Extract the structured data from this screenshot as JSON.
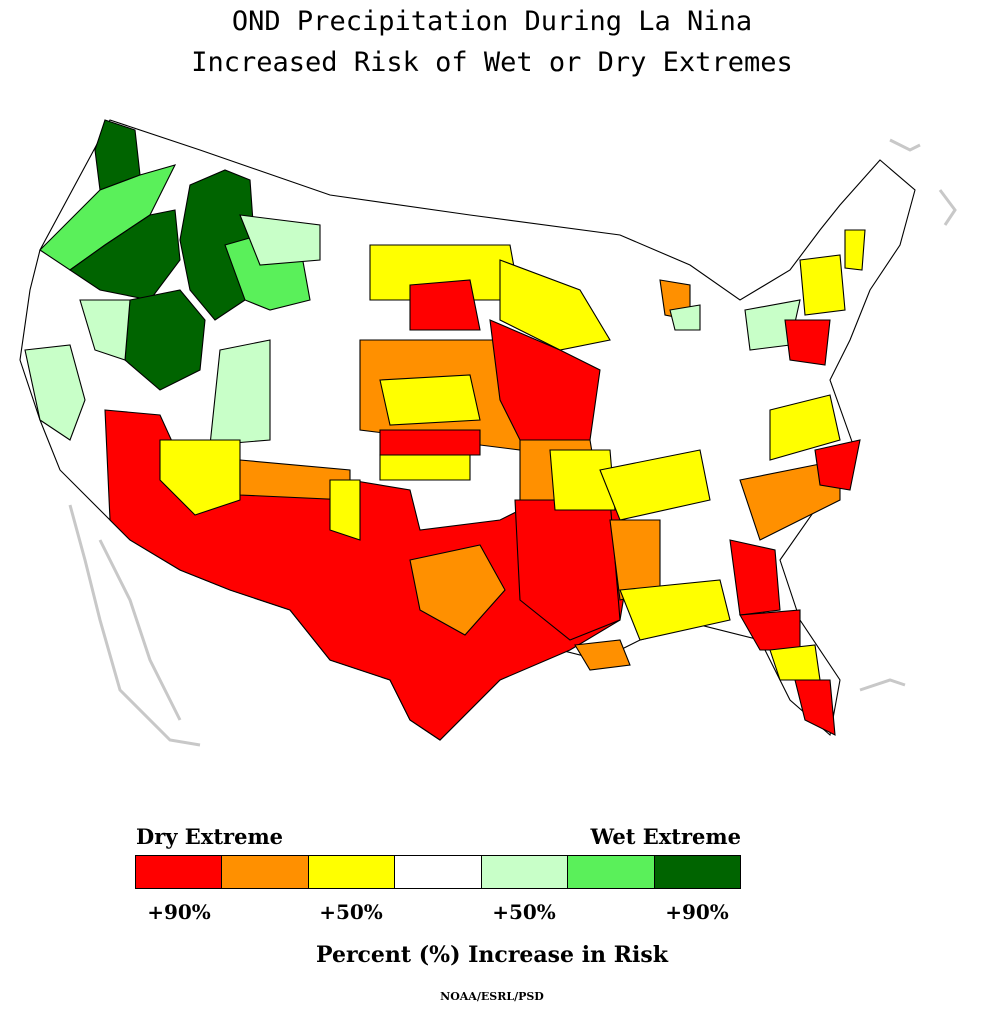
{
  "title": {
    "line1": "OND Precipitation During La Nina",
    "line2": "Increased Risk of Wet or Dry Extremes"
  },
  "legend": {
    "dry_label": "Dry Extreme",
    "wet_label": "Wet Extreme",
    "colors": [
      "#ff0000",
      "#ff9000",
      "#ffff00",
      "#ffffff",
      "#c8ffc8",
      "#5af05a",
      "#006400"
    ],
    "ticks": [
      "+90%",
      "+50%",
      "+50%",
      "+90%"
    ],
    "axis_label": "Percent (%) Increase in Risk"
  },
  "credit": "NOAA/ESRL/PSD",
  "map_regions": {
    "pacific_northwest": "wet +90%",
    "california_coast": "wet +50%",
    "southwest_texas_gulf": "dry +90%",
    "southern_plains_midwest": "dry +50%",
    "southeast": "dry +50%",
    "florida": "dry +90%",
    "northeast_interior": "neutral"
  }
}
